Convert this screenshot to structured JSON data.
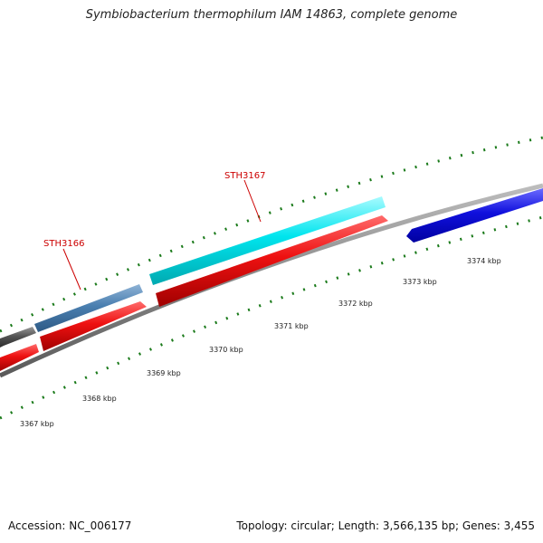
{
  "title": "Symbiobacterium thermophilum IAM 14863, complete genome",
  "footer": {
    "accession": "Accession: NC_006177",
    "summary": "Topology: circular; Length: 3,566,135 bp; Genes: 3,455"
  },
  "colors": {
    "background": "#ffffff",
    "backbone": "#888888",
    "tick": "#1a7a1a",
    "label": "#cc0000",
    "gene_red": "#ee1111",
    "gene_cyan": "#00e5ee",
    "gene_steelblue": "#4a7fb0",
    "gene_gray": "#555555",
    "gene_blue": "#1010dd"
  },
  "scale": {
    "ticks": [
      {
        "label": "3367 kbp"
      },
      {
        "label": "3368 kbp"
      },
      {
        "label": "3369 kbp"
      },
      {
        "label": "3370 kbp"
      },
      {
        "label": "3371 kbp"
      },
      {
        "label": "3372 kbp"
      },
      {
        "label": "3373 kbp"
      },
      {
        "label": "3374 kbp"
      }
    ]
  },
  "gene_labels": [
    {
      "text": "STH3166"
    },
    {
      "text": "STH3167"
    }
  ]
}
